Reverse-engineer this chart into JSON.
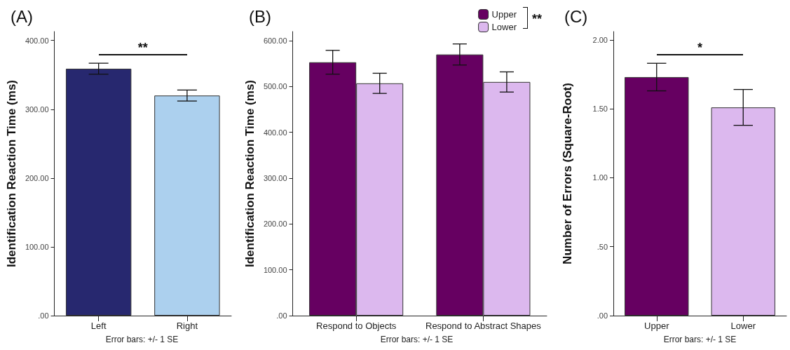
{
  "chart_data": [
    {
      "type": "bar",
      "title": "(A)",
      "ylabel": "Identification Reaction Time (ms)",
      "categories": [
        "Left",
        "Right"
      ],
      "values": [
        359,
        320
      ],
      "errors": [
        8,
        8
      ],
      "colors": [
        "#27286f",
        "#acd0ee"
      ],
      "ylim": [
        0,
        413
      ],
      "yticks": [
        {
          "value": 0,
          "label": ".00"
        },
        {
          "value": 100,
          "label": "100.00"
        },
        {
          "value": 200,
          "label": "200.00"
        },
        {
          "value": 300,
          "label": "300.00"
        },
        {
          "value": 400,
          "label": "400.00"
        }
      ],
      "grid": false,
      "legend": false,
      "annotations": [
        "Error bars: +/- 1 SE",
        "**"
      ]
    },
    {
      "type": "bar",
      "title": "(B)",
      "ylabel": "Identification Reaction Time (ms)",
      "categories": [
        "Respond to Objects",
        "Respond to Abstract Shapes"
      ],
      "series": [
        {
          "name": "Upper",
          "color": "#660061",
          "values": [
            553,
            570
          ],
          "errors": [
            26,
            23
          ]
        },
        {
          "name": "Lower",
          "color": "#dcb8ee",
          "values": [
            507,
            510
          ],
          "errors": [
            22,
            22
          ]
        }
      ],
      "ylim": [
        0,
        620
      ],
      "yticks": [
        {
          "value": 0,
          "label": ".00"
        },
        {
          "value": 100,
          "label": "100.00"
        },
        {
          "value": 200,
          "label": "200.00"
        },
        {
          "value": 300,
          "label": "300.00"
        },
        {
          "value": 400,
          "label": "400.00"
        },
        {
          "value": 500,
          "label": "500.00"
        },
        {
          "value": 600,
          "label": "600.00"
        }
      ],
      "grid": false,
      "legend": "top right",
      "annotations": [
        "Error bars: +/- 1 SE",
        "**"
      ]
    },
    {
      "type": "bar",
      "title": "(C)",
      "ylabel": "Number of Errors (Square-Root)",
      "categories": [
        "Upper",
        "Lower"
      ],
      "values": [
        1.73,
        1.51
      ],
      "errors": [
        0.1,
        0.13
      ],
      "colors": [
        "#660061",
        "#dcb8ee"
      ],
      "ylim": [
        0,
        2.06
      ],
      "yticks": [
        {
          "value": 0,
          "label": ".00"
        },
        {
          "value": 0.5,
          "label": ".50"
        },
        {
          "value": 1,
          "label": "1.00"
        },
        {
          "value": 1.5,
          "label": "1.50"
        },
        {
          "value": 2,
          "label": "2.00"
        }
      ],
      "grid": false,
      "legend": false,
      "annotations": [
        "Error bars: +/- 1 SE",
        "*"
      ]
    }
  ]
}
